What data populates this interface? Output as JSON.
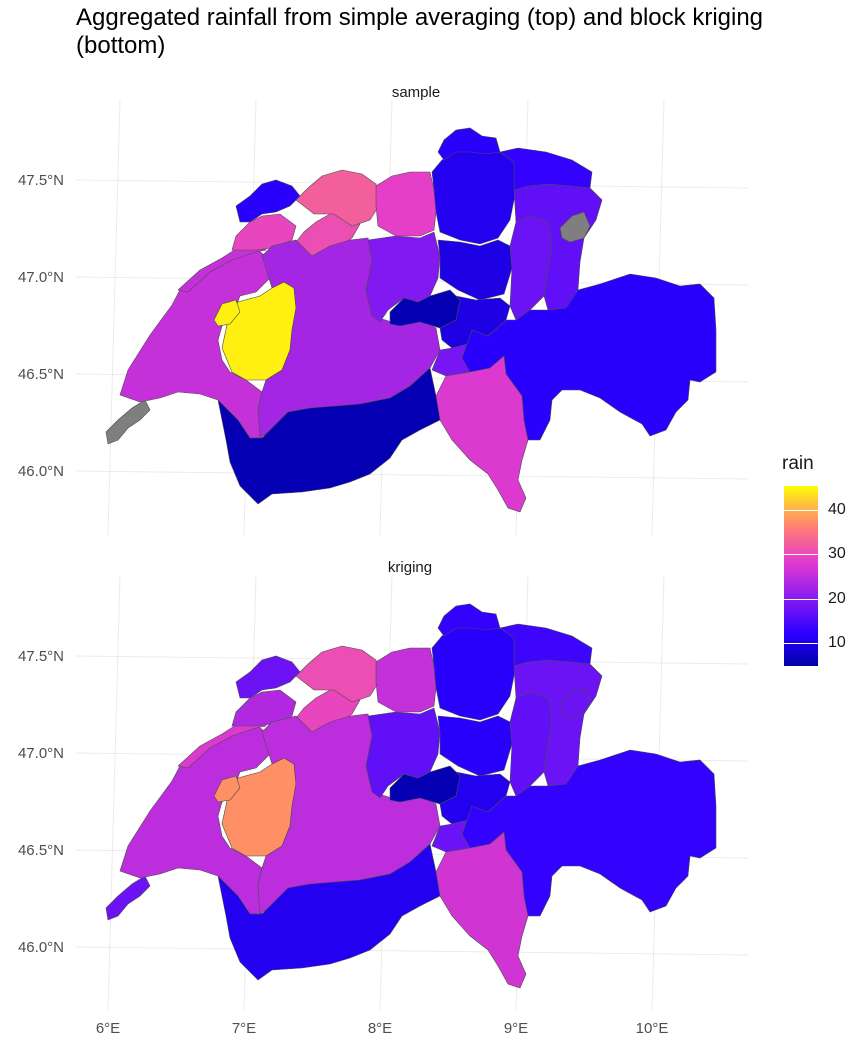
{
  "title": "Aggregated rainfall from simple averaging (top) and block kriging (bottom)",
  "panels": {
    "top": {
      "label": "sample"
    },
    "bottom": {
      "label": "kriging"
    }
  },
  "axes": {
    "x_ticks": [
      "6°E",
      "7°E",
      "8°E",
      "9°E",
      "10°E"
    ],
    "y_ticks": [
      "47.5°N",
      "47.0°N",
      "46.5°N",
      "46.0°N"
    ]
  },
  "legend": {
    "title": "rain",
    "ticks": [
      "40",
      "30",
      "20",
      "10"
    ],
    "range": [
      5,
      46
    ],
    "colors": [
      "#0000a8",
      "#2b00ff",
      "#8a1bf0",
      "#e43ccc",
      "#ff7a78",
      "#ffc040",
      "#ffff00"
    ]
  },
  "chart_data": {
    "type": "heatmap",
    "title": "Aggregated rainfall from simple averaging (top) and block kriging (bottom)",
    "facets": [
      "sample",
      "kriging"
    ],
    "legend_title": "rain",
    "scale_ticks": [
      10,
      20,
      30,
      40
    ],
    "na_color": "#7f7f7f",
    "regions": [
      {
        "name": "geneva",
        "sample": null,
        "kriging": 18
      },
      {
        "name": "vaud",
        "sample": 26,
        "kriging": 25
      },
      {
        "name": "fribourg",
        "sample": 45,
        "kriging": 38
      },
      {
        "name": "fribourg-enclave",
        "sample": 45,
        "kriging": 38
      },
      {
        "name": "neuchatel",
        "sample": 26,
        "kriging": 28
      },
      {
        "name": "jura",
        "sample": 30,
        "kriging": 24
      },
      {
        "name": "basel",
        "sample": 12,
        "kriging": 18
      },
      {
        "name": "basel-landschaft",
        "sample": 31,
        "kriging": 30
      },
      {
        "name": "solothurn",
        "sample": 33,
        "kriging": 31
      },
      {
        "name": "bern",
        "sample": 23,
        "kriging": 25
      },
      {
        "name": "aargau",
        "sample": 29,
        "kriging": 26
      },
      {
        "name": "zurich",
        "sample": 11,
        "kriging": 12
      },
      {
        "name": "lucerne",
        "sample": 20,
        "kriging": 17
      },
      {
        "name": "zug",
        "sample": 10,
        "kriging": 12
      },
      {
        "name": "schwyz",
        "sample": 10,
        "kriging": 11
      },
      {
        "name": "unterwalden",
        "sample": 6,
        "kriging": 6
      },
      {
        "name": "uri",
        "sample": 19,
        "kriging": 18
      },
      {
        "name": "glarus",
        "sample": 18,
        "kriging": 17
      },
      {
        "name": "st-gallen",
        "sample": 17,
        "kriging": 18
      },
      {
        "name": "appenzell",
        "sample": null,
        "kriging": 18
      },
      {
        "name": "thurgau",
        "sample": 13,
        "kriging": 14
      },
      {
        "name": "schaffhausen",
        "sample": 12,
        "kriging": 13
      },
      {
        "name": "graubunden",
        "sample": 12,
        "kriging": 13
      },
      {
        "name": "ticino",
        "sample": 28,
        "kriging": 27
      },
      {
        "name": "valais",
        "sample": 6,
        "kriging": 11
      }
    ]
  }
}
